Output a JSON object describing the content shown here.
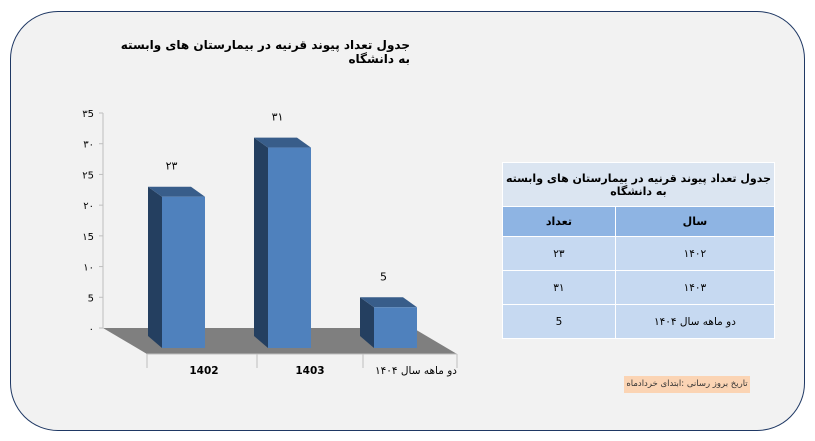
{
  "chart_title": "جدول تعداد پیوند قرنیه در بیمارستان های وابسته به دانشگاه",
  "chart_data": {
    "type": "bar",
    "title": "جدول تعداد پیوند قرنیه در بیمارستان های وابسته به دانشگاه",
    "categories": [
      "1402",
      "1403",
      "دو ماهه  سال ۱۴۰۴"
    ],
    "values": [
      23,
      31,
      5
    ],
    "value_labels": [
      "۲۳",
      "۳۱",
      "5"
    ],
    "ylim": [
      0,
      35
    ],
    "y_ticks": [
      0,
      5,
      10,
      15,
      20,
      25,
      30,
      35
    ],
    "y_tick_labels": [
      "۰",
      "5",
      "۱۰",
      "۱5",
      "۲۰",
      "۲5",
      "۳۰",
      "۳5"
    ],
    "grid": false,
    "xlabel": "",
    "ylabel": ""
  },
  "table": {
    "caption": "جدول تعداد پیوند قرنیه در بیمارستان های وابسته به دانشگاه",
    "headers": {
      "year": "سال",
      "count": "تعداد"
    },
    "rows": [
      {
        "year": "۱۴۰۲",
        "count": "۲۳"
      },
      {
        "year": "۱۴۰۳",
        "count": "۳۱"
      },
      {
        "year": "دو ماهه  سال ۱۴۰۴",
        "count": "5"
      }
    ]
  },
  "footnote": "تاریخ بروز رسانی :ابتدای خردادماه",
  "colors": {
    "bar_front": "#4f81bd",
    "bar_side": "#243f60",
    "bar_top": "#385d8a",
    "floor": "#7f7f7f",
    "frame_border": "#1f3864",
    "table_header": "#8eb4e3",
    "table_row": "#c6d9f1",
    "footnote_bg": "#fbd4b4"
  }
}
